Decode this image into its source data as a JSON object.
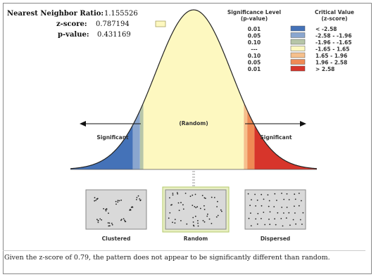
{
  "stats": {
    "nnr_label": "Nearest Neighbor Ratio:",
    "nnr_value": "1.155526",
    "z_label": "z-score:",
    "z_value": "0.787194",
    "p_label": "p-value:",
    "p_value": "0.431169"
  },
  "legend": {
    "sig_title_1": "Significance Level",
    "sig_title_2": "(p-value)",
    "crit_title_1": "Critical Value",
    "crit_title_2": "(z-score)",
    "rows": [
      {
        "p": "0.01",
        "z": "< -2.58",
        "color": "#4472b8"
      },
      {
        "p": "0.05",
        "z": "-2.58 - -1.96",
        "color": "#8aa6cf"
      },
      {
        "p": "0.10",
        "z": "-1.96 - -1.65",
        "color": "#b7c6a8"
      },
      {
        "p": "---",
        "z": "-1.65 - 1.65",
        "color": "#fdf8c0"
      },
      {
        "p": "0.10",
        "z": "1.65 - 1.96",
        "color": "#f6c08c"
      },
      {
        "p": "0.05",
        "z": "1.96 - 2.58",
        "color": "#ef8a55"
      },
      {
        "p": "0.01",
        "z": "> 2.58",
        "color": "#d7352b"
      }
    ]
  },
  "curve": {
    "random_label": "(Random)",
    "sig_left": "Significant",
    "sig_right": "Significant",
    "highlight_color": "#c8d67a",
    "yellow": "#fdf8c0"
  },
  "patterns": {
    "clustered": "Clustered",
    "random": "Random",
    "dispersed": "Dispersed"
  },
  "caption": "Given the z-score of 0.79, the pattern does not appear to be significantly different than random."
}
